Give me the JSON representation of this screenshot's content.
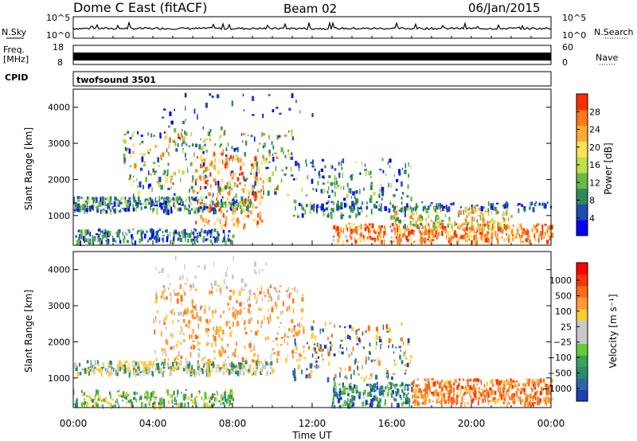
{
  "header": {
    "radar": "Dome C East (fitACF)",
    "beam": "Beam 02",
    "date": "06/Jan/2015"
  },
  "chart_data": [
    {
      "type": "line",
      "name": "noise-panel",
      "left_label": "N.Sky",
      "right_label": "N.Search",
      "left_ticks": [
        "10^5",
        "10^0"
      ],
      "right_ticks": [
        "10^5",
        "10^0"
      ],
      "scale": "log"
    },
    {
      "type": "line",
      "name": "frequency-nave-panel",
      "left_label_lines": [
        "Freq.",
        "[MHz]"
      ],
      "right_label": "Nave",
      "left_ticks": [
        "18",
        "8"
      ],
      "right_ticks": [
        "60",
        "0"
      ],
      "ylim_left": [
        8,
        18
      ],
      "ylim_right": [
        0,
        60
      ]
    },
    {
      "type": "table",
      "name": "cpid-panel",
      "label": "CPID",
      "program": "twofsound 3501"
    },
    {
      "type": "heatmap",
      "name": "power-panel",
      "xlabel": "",
      "ylabel": "Slant Range [km]",
      "xlim": [
        0,
        24
      ],
      "ylim": [
        180,
        4500
      ],
      "yticks": [
        1000,
        2000,
        3000,
        4000
      ],
      "colorbar": {
        "label": "Power [dB]",
        "ticks": [
          4,
          8,
          12,
          16,
          20,
          24,
          28
        ],
        "range": [
          0,
          32
        ],
        "colors": [
          "#0000ff",
          "#1e4bb4",
          "#2e8b57",
          "#66bb44",
          "#bfe04a",
          "#ffe05a",
          "#ffaa33",
          "#ff7a1a",
          "#ff2e00"
        ]
      }
    },
    {
      "type": "heatmap",
      "name": "velocity-panel",
      "xlabel": "Time UT",
      "ylabel": "Slant Range [km]",
      "xlim": [
        0,
        24
      ],
      "ylim": [
        180,
        4500
      ],
      "x_tick_labels": [
        "00:00",
        "04:00",
        "08:00",
        "12:00",
        "16:00",
        "20:00",
        "00:00"
      ],
      "yticks": [
        1000,
        2000,
        3000,
        4000
      ],
      "colorbar": {
        "label": "Velocity [m s⁻¹]",
        "ticks": [
          "1000",
          "500",
          "100",
          "25",
          "−25",
          "−100",
          "−500",
          "−1000"
        ],
        "colors": [
          "#1f3fb5",
          "#2f64a8",
          "#2d8a6a",
          "#3aa35a",
          "#66cc33",
          "#c8c8c8",
          "#c8c8c8",
          "#ffcc33",
          "#ff9933",
          "#ff6b1a",
          "#ff3300",
          "#ff0000"
        ]
      }
    }
  ]
}
